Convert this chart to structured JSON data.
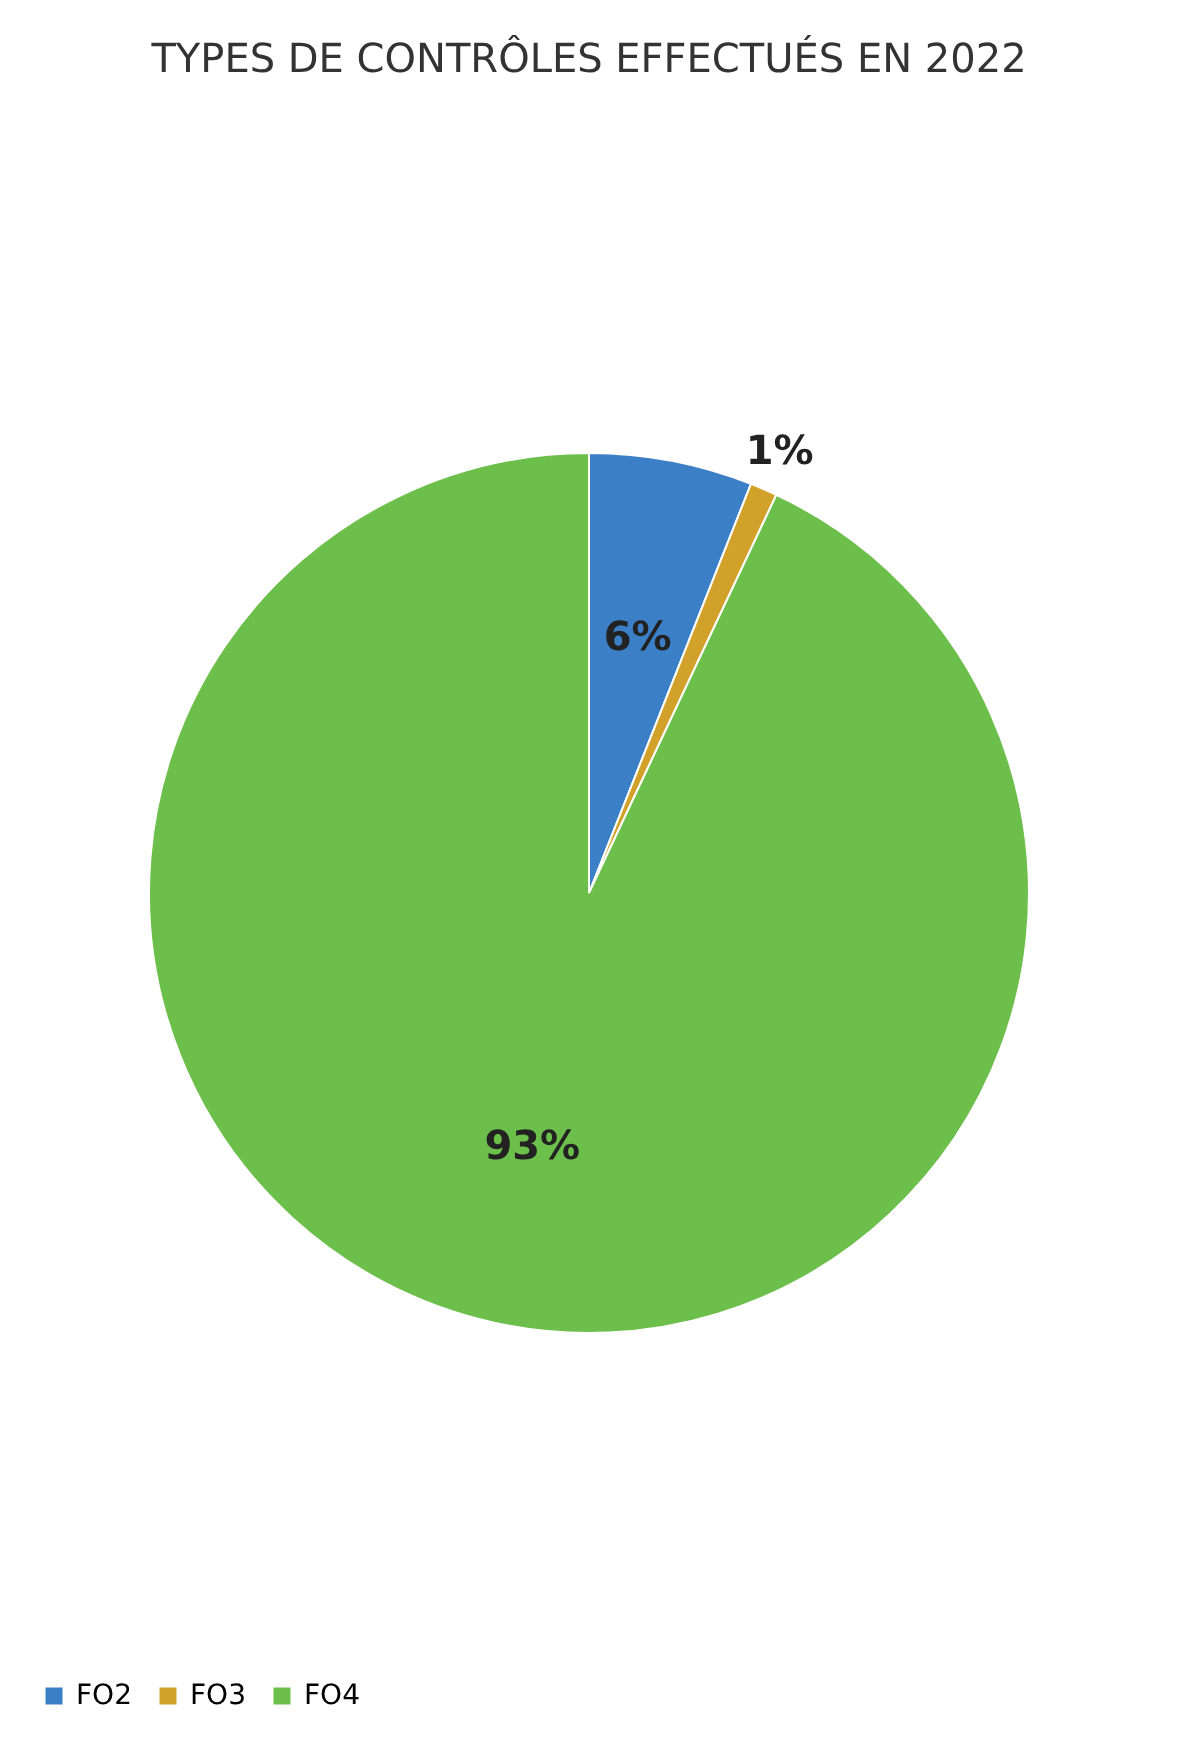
{
  "chart_data": {
    "type": "pie",
    "title": "TYPES DE CONTRÔLES EFFECTUÉS EN 2022",
    "categories": [
      "FO2",
      "FO3",
      "FO4"
    ],
    "values": [
      6,
      1,
      93
    ],
    "colors": [
      "#3b7fc6",
      "#d2a12a",
      "#6cbf4a"
    ],
    "value_labels": [
      "6%",
      "1%",
      "93%"
    ],
    "legend": "bottom"
  }
}
